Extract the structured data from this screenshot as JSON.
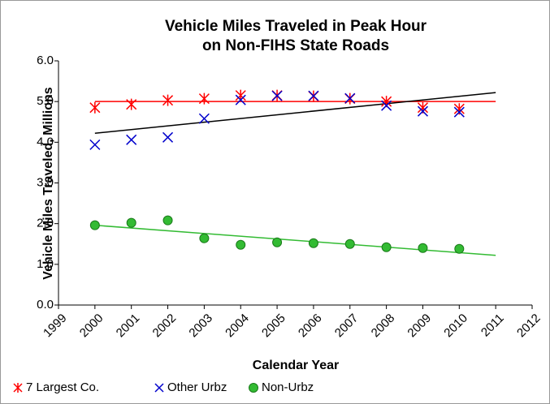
{
  "chart_data": {
    "type": "scatter",
    "title": [
      "Vehicle Miles Traveled in Peak Hour",
      "on Non-FIHS State Roads"
    ],
    "x_label": "Calendar Year",
    "y_label": "Vehicle Miles Traveled, Millions",
    "x": [
      2000,
      2001,
      2002,
      2003,
      2004,
      2005,
      2006,
      2007,
      2008,
      2009,
      2010
    ],
    "series": [
      {
        "name": "7 Largest Co.",
        "color": "#ff0000",
        "marker": "asterisk",
        "values": [
          4.85,
          4.93,
          5.03,
          5.07,
          5.15,
          5.15,
          5.13,
          5.07,
          5.0,
          4.85,
          4.82
        ],
        "trend": {
          "x": [
            2000,
            2011
          ],
          "values": [
            5.0,
            5.0
          ],
          "color": "#ff0000"
        }
      },
      {
        "name": "Other Urbz",
        "color": "#0000cc",
        "marker": "x",
        "values": [
          3.94,
          4.06,
          4.12,
          4.58,
          5.04,
          5.14,
          5.14,
          5.08,
          4.9,
          4.76,
          4.74
        ],
        "trend": {
          "x": [
            2000,
            2011
          ],
          "values": [
            4.22,
            5.22
          ],
          "color": "#000000"
        }
      },
      {
        "name": "Non-Urbz",
        "color": "#33bb33",
        "marker": "circle",
        "values": [
          1.96,
          2.02,
          2.08,
          1.64,
          1.48,
          1.54,
          1.52,
          1.5,
          1.42,
          1.4,
          1.38
        ],
        "trend": {
          "x": [
            2000,
            2011
          ],
          "values": [
            1.96,
            1.22
          ],
          "color": "#33bb33"
        }
      }
    ],
    "xlim": [
      1999,
      2012
    ],
    "xticks": [
      1999,
      2000,
      2001,
      2002,
      2003,
      2004,
      2005,
      2006,
      2007,
      2008,
      2009,
      2010,
      2011,
      2012
    ],
    "ylim": [
      0,
      6
    ],
    "yticks": [
      {
        "value": 0,
        "label": "0.0"
      },
      {
        "value": 1,
        "label": "1.0"
      },
      {
        "value": 2,
        "label": "2.0"
      },
      {
        "value": 3,
        "label": "3.0"
      },
      {
        "value": 4,
        "label": "4.0"
      },
      {
        "value": 5,
        "label": "5.0"
      },
      {
        "value": 6,
        "label": "6.0"
      }
    ],
    "grid": false,
    "legend": "bottom"
  }
}
